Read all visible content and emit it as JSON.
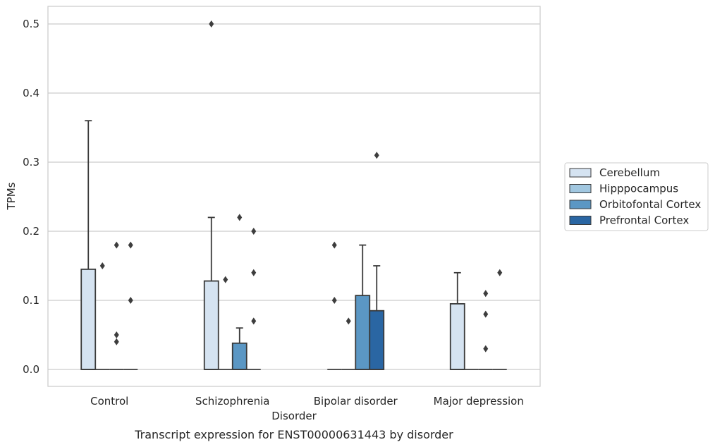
{
  "chart_data": {
    "type": "box",
    "title": "Transcript expression for ENST00000631443 by disorder",
    "xlabel": "Disorder",
    "ylabel": "TPMs",
    "ylim": [
      -0.025,
      0.525
    ],
    "yticks": [
      "0.0",
      "0.1",
      "0.2",
      "0.3",
      "0.4",
      "0.5"
    ],
    "grid": true,
    "legend_position": "right",
    "categories": [
      "Control",
      "Schizophrenia",
      "Bipolar disorder",
      "Major depression"
    ],
    "series": [
      {
        "name": "Cerebellum",
        "color": "#d5e3f1",
        "boxes": [
          {
            "q1": 0,
            "median": 0,
            "q3": 0.145,
            "whisker_low": 0,
            "whisker_high": 0.36,
            "outliers": []
          },
          {
            "q1": 0,
            "median": 0,
            "q3": 0.128,
            "whisker_low": 0,
            "whisker_high": 0.22,
            "outliers": [
              0.5
            ]
          },
          {
            "q1": 0,
            "median": 0,
            "q3": 0,
            "whisker_low": 0,
            "whisker_high": 0,
            "outliers": [
              0.18,
              0.1
            ]
          },
          {
            "q1": 0,
            "median": 0,
            "q3": 0.095,
            "whisker_low": 0,
            "whisker_high": 0.14,
            "outliers": []
          }
        ]
      },
      {
        "name": "Hipppocampus",
        "color": "#a1c7e0",
        "boxes": [
          {
            "q1": 0,
            "median": 0,
            "q3": 0,
            "whisker_low": 0,
            "whisker_high": 0,
            "outliers": [
              0.15
            ]
          },
          {
            "q1": 0,
            "median": 0,
            "q3": 0,
            "whisker_low": 0,
            "whisker_high": 0,
            "outliers": [
              0.13
            ]
          },
          {
            "q1": 0,
            "median": 0,
            "q3": 0,
            "whisker_low": 0,
            "whisker_high": 0,
            "outliers": [
              0.07
            ]
          },
          {
            "q1": 0,
            "median": 0,
            "q3": 0,
            "whisker_low": 0,
            "whisker_high": 0,
            "outliers": []
          }
        ]
      },
      {
        "name": "Orbitofontal Cortex",
        "color": "#5b97c4",
        "boxes": [
          {
            "q1": 0,
            "median": 0,
            "q3": 0,
            "whisker_low": 0,
            "whisker_high": 0,
            "outliers": [
              0.18,
              0.05,
              0.04
            ]
          },
          {
            "q1": 0,
            "median": 0,
            "q3": 0.038,
            "whisker_low": 0,
            "whisker_high": 0.06,
            "outliers": [
              0.22
            ]
          },
          {
            "q1": 0,
            "median": 0,
            "q3": 0.107,
            "whisker_low": 0,
            "whisker_high": 0.18,
            "outliers": []
          },
          {
            "q1": 0,
            "median": 0,
            "q3": 0,
            "whisker_low": 0,
            "whisker_high": 0,
            "outliers": [
              0.11,
              0.08,
              0.03
            ]
          }
        ]
      },
      {
        "name": "Prefrontal Cortex",
        "color": "#2a66a3",
        "boxes": [
          {
            "q1": 0,
            "median": 0,
            "q3": 0,
            "whisker_low": 0,
            "whisker_high": 0,
            "outliers": [
              0.18,
              0.1
            ]
          },
          {
            "q1": 0,
            "median": 0,
            "q3": 0,
            "whisker_low": 0,
            "whisker_high": 0,
            "outliers": [
              0.2,
              0.14,
              0.07
            ]
          },
          {
            "q1": 0,
            "median": 0,
            "q3": 0.085,
            "whisker_low": 0,
            "whisker_high": 0.15,
            "outliers": [
              0.31
            ]
          },
          {
            "q1": 0,
            "median": 0,
            "q3": 0,
            "whisker_low": 0,
            "whisker_high": 0,
            "outliers": [
              0.14
            ]
          }
        ]
      }
    ]
  }
}
